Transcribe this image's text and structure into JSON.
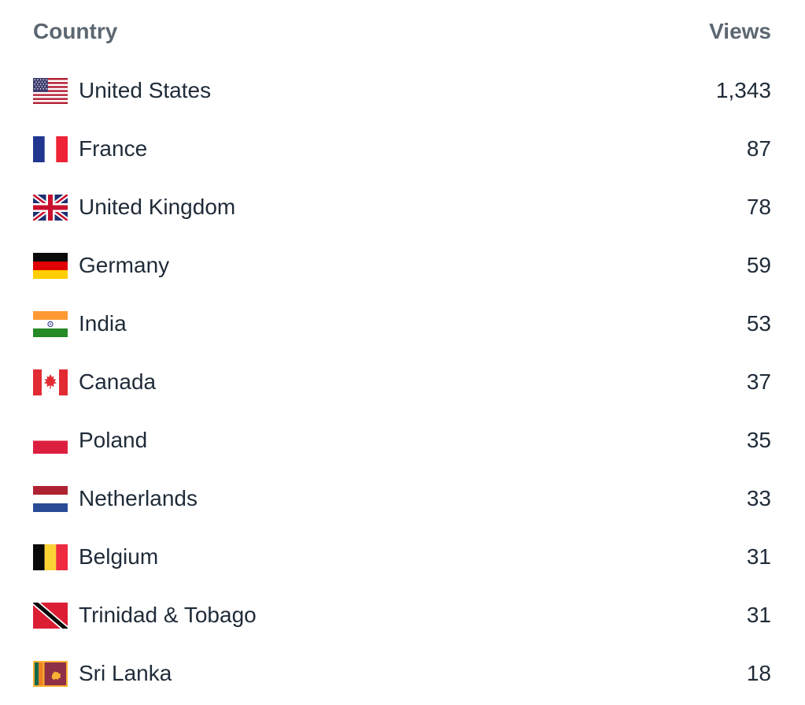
{
  "table": {
    "columns": {
      "country": "Country",
      "views": "Views"
    },
    "rows": [
      {
        "country": "United States",
        "views": "1,343",
        "flag": "us"
      },
      {
        "country": "France",
        "views": "87",
        "flag": "fr"
      },
      {
        "country": "United Kingdom",
        "views": "78",
        "flag": "gb"
      },
      {
        "country": "Germany",
        "views": "59",
        "flag": "de"
      },
      {
        "country": "India",
        "views": "53",
        "flag": "in"
      },
      {
        "country": "Canada",
        "views": "37",
        "flag": "ca"
      },
      {
        "country": "Poland",
        "views": "35",
        "flag": "pl"
      },
      {
        "country": "Netherlands",
        "views": "33",
        "flag": "nl"
      },
      {
        "country": "Belgium",
        "views": "31",
        "flag": "be"
      },
      {
        "country": "Trinidad & Tobago",
        "views": "31",
        "flag": "tt"
      },
      {
        "country": "Sri Lanka",
        "views": "18",
        "flag": "lk"
      }
    ],
    "colors": {
      "background": "#ffffff",
      "header_text": "#5c6771",
      "body_text": "#1f2b38"
    }
  },
  "chart_data": {
    "type": "table",
    "columns": [
      "Country",
      "Views"
    ],
    "rows": [
      [
        "United States",
        1343
      ],
      [
        "France",
        87
      ],
      [
        "United Kingdom",
        78
      ],
      [
        "Germany",
        59
      ],
      [
        "India",
        53
      ],
      [
        "Canada",
        37
      ],
      [
        "Poland",
        35
      ],
      [
        "Netherlands",
        33
      ],
      [
        "Belgium",
        31
      ],
      [
        "Trinidad & Tobago",
        31
      ],
      [
        "Sri Lanka",
        18
      ]
    ],
    "title": "",
    "sort": "Views descending",
    "grid": false,
    "notes": "Ranked list of views by country with national flag icons; white background, no row dividers"
  }
}
